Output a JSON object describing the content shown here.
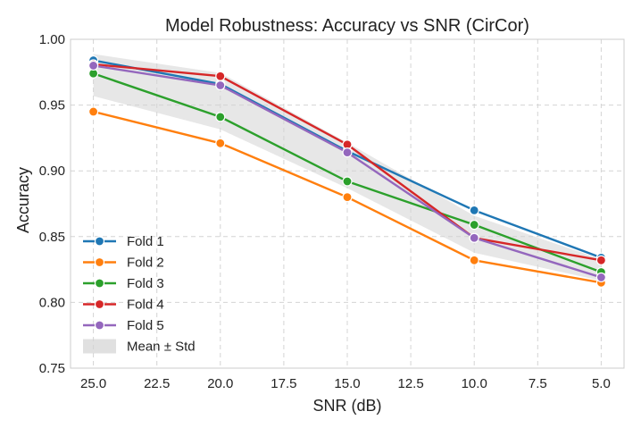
{
  "chart_data": {
    "type": "line",
    "title": "Model Robustness: Accuracy vs SNR (CirCor)",
    "xlabel": "SNR (dB)",
    "ylabel": "Accuracy",
    "x": [
      25.0,
      20.0,
      15.0,
      10.0,
      5.0
    ],
    "x_axis_reversed": true,
    "xlim": [
      25.9,
      4.1
    ],
    "xticks": [
      25.0,
      22.5,
      20.0,
      17.5,
      15.0,
      12.5,
      10.0,
      7.5,
      5.0
    ],
    "xtick_labels": [
      "25.0",
      "22.5",
      "20.0",
      "17.5",
      "15.0",
      "12.5",
      "10.0",
      "7.5",
      "5.0"
    ],
    "ylim": [
      0.75,
      1.0
    ],
    "yticks": [
      0.75,
      0.8,
      0.85,
      0.9,
      0.95,
      1.0
    ],
    "ytick_labels": [
      "0.75",
      "0.80",
      "0.85",
      "0.90",
      "0.95",
      "1.00"
    ],
    "grid": true,
    "legend_position": "lower-left",
    "series": [
      {
        "name": "Fold 1",
        "color": "#1f77b4",
        "values": [
          0.984,
          0.966,
          0.915,
          0.87,
          0.834
        ]
      },
      {
        "name": "Fold 2",
        "color": "#ff7f0e",
        "values": [
          0.945,
          0.921,
          0.88,
          0.832,
          0.815
        ]
      },
      {
        "name": "Fold 3",
        "color": "#2ca02c",
        "values": [
          0.974,
          0.941,
          0.892,
          0.859,
          0.823
        ]
      },
      {
        "name": "Fold 4",
        "color": "#d62728",
        "values": [
          0.981,
          0.972,
          0.92,
          0.849,
          0.832
        ]
      },
      {
        "name": "Fold 5",
        "color": "#9467bd",
        "values": [
          0.98,
          0.965,
          0.914,
          0.849,
          0.819
        ]
      }
    ],
    "band": {
      "name": "Mean ± Std",
      "color": "#d3d3d3"
    }
  }
}
